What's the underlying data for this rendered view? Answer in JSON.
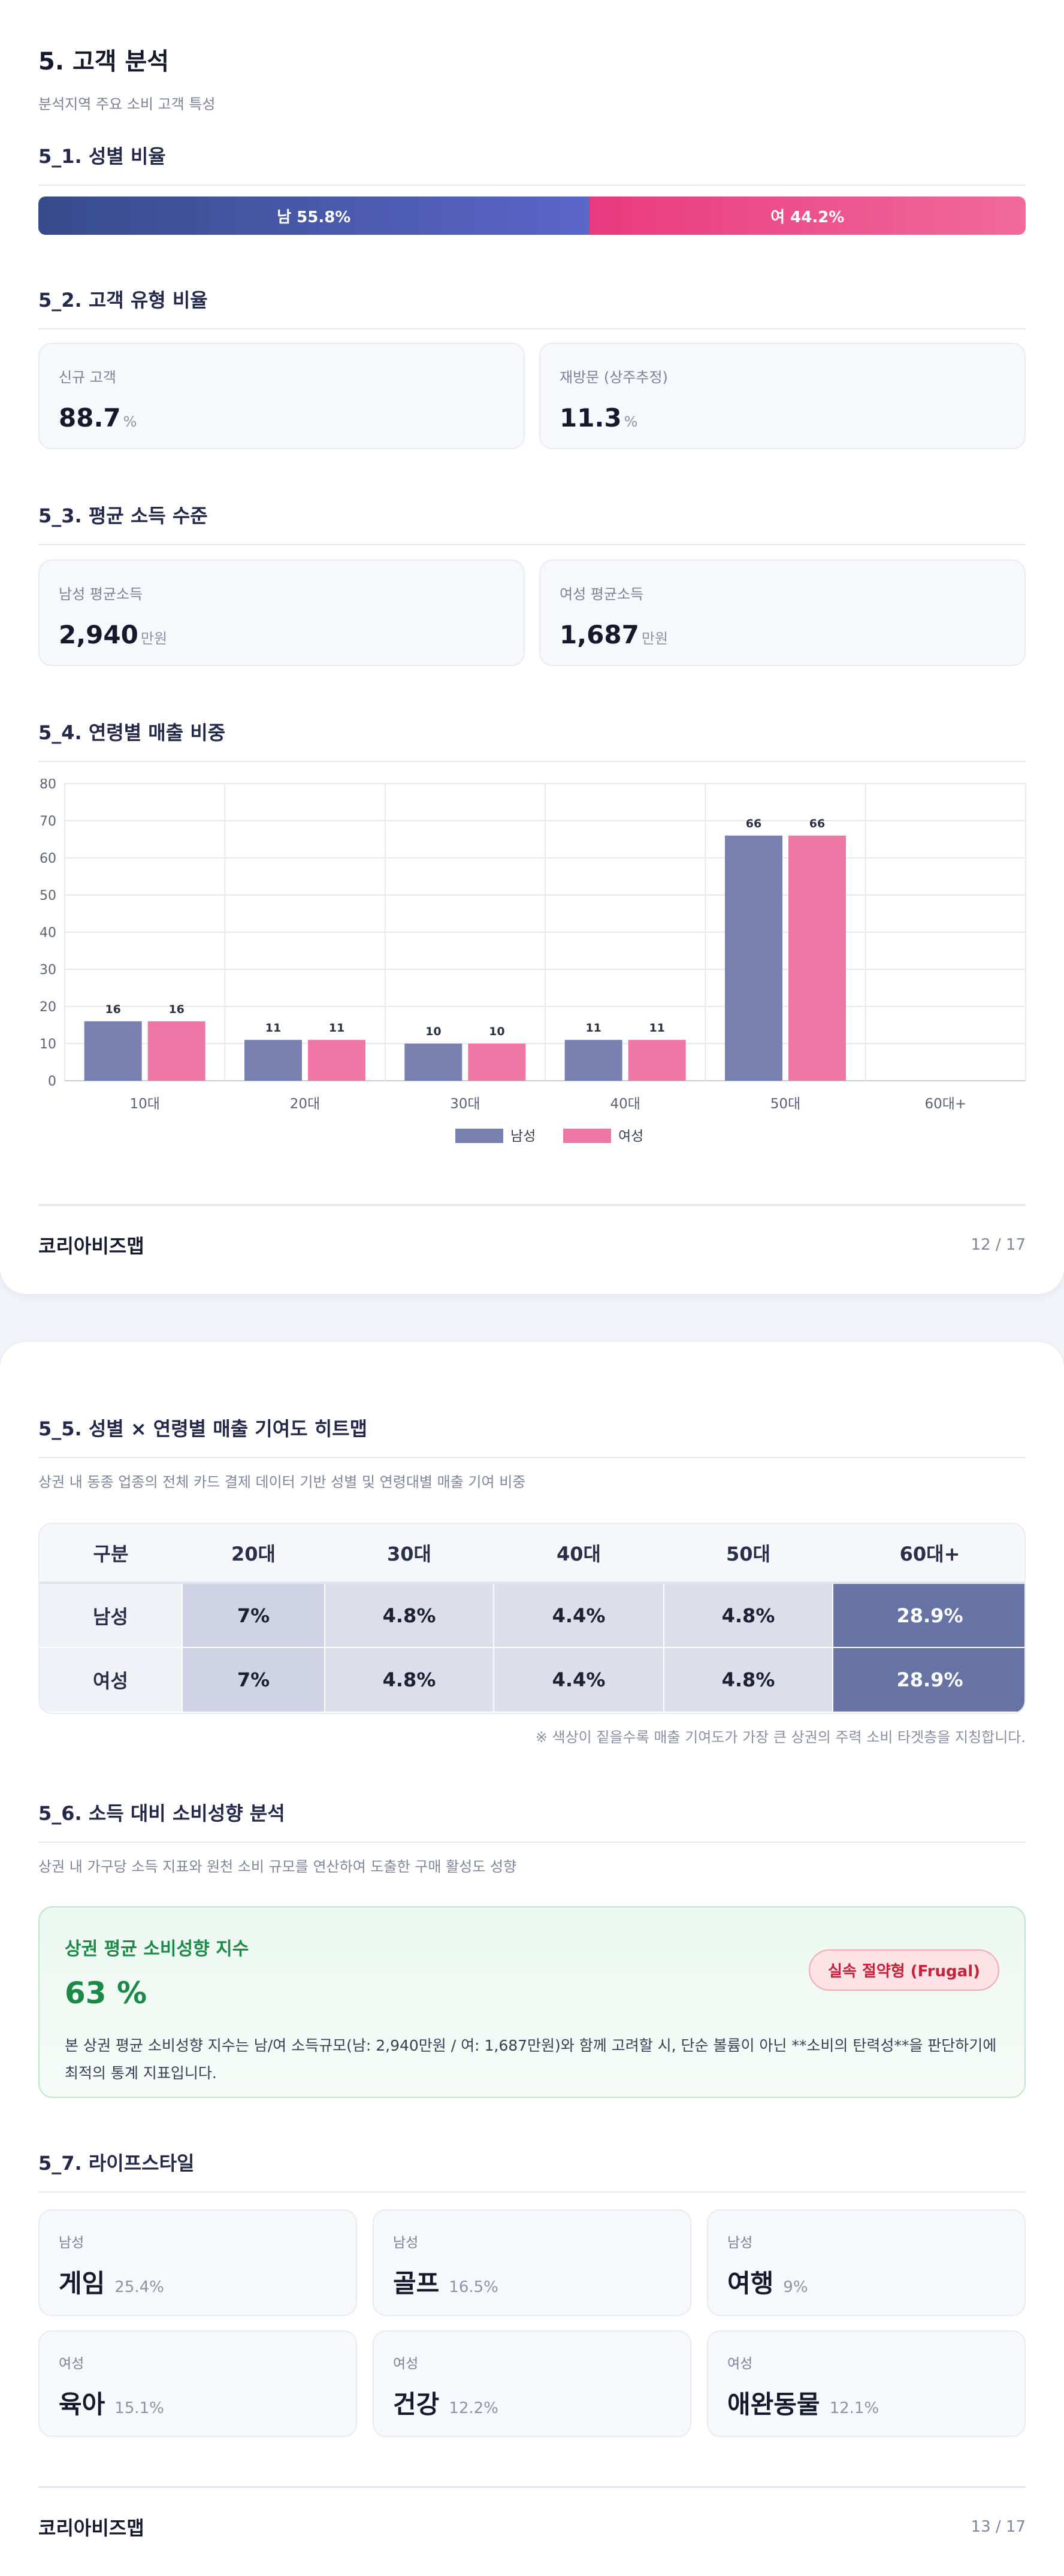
{
  "page1": {
    "title": "5. 고객 분석",
    "subtitle": "분석지역 주요 소비 고객 특성",
    "s1": {
      "title": "5_1. 성별 비율",
      "male_label": "남 55.8%",
      "female_label": "여 44.2%",
      "male_ratio": 55.8,
      "female_ratio": 44.2,
      "male_color": "#4a5aac",
      "female_color": "#ec4a89"
    },
    "s2": {
      "title": "5_2. 고객 유형 비율",
      "cards": [
        {
          "label": "신규 고객",
          "value": "88.7",
          "unit": "%"
        },
        {
          "label": "재방문 (상주추정)",
          "value": "11.3",
          "unit": "%"
        }
      ]
    },
    "s3": {
      "title": "5_3. 평균 소득 수준",
      "cards": [
        {
          "label": "남성 평균소득",
          "value": "2,940",
          "unit": "만원"
        },
        {
          "label": "여성 평균소득",
          "value": "1,687",
          "unit": "만원"
        }
      ]
    },
    "s4": {
      "title": "5_4. 연령별 매출 비중"
    },
    "footer": {
      "brand": "코리아비즈맵",
      "page": "12 / 17"
    }
  },
  "chart_data": {
    "type": "bar",
    "title": "",
    "xlabel": "",
    "ylabel": "",
    "categories": [
      "10대",
      "20대",
      "30대",
      "40대",
      "50대",
      "60대+"
    ],
    "series": [
      {
        "name": "남성",
        "values": [
          16,
          11,
          10,
          11,
          66,
          0
        ],
        "color": "#7880b0"
      },
      {
        "name": "여성",
        "values": [
          16,
          11,
          10,
          11,
          66,
          0
        ],
        "color": "#ee77a5"
      }
    ],
    "ylim": [
      0,
      80
    ],
    "yticks": [
      0,
      10,
      20,
      30,
      40,
      50,
      60,
      70,
      80
    ],
    "grid": true,
    "legend": "bottom-center",
    "data_labels": true
  },
  "page2": {
    "s5": {
      "title": "5_5. 성별 × 연령별 매출 기여도 히트맵",
      "desc": "상권 내 동종 업종의 전체 카드 결제 데이터 기반 성별 및 연령대별 매출 기여 비중",
      "headers": [
        "구분",
        "20대",
        "30대",
        "40대",
        "50대",
        "60대+"
      ],
      "rows": [
        {
          "label": "남성",
          "cells": [
            "7%",
            "4.8%",
            "4.4%",
            "4.8%",
            "28.9%"
          ]
        },
        {
          "label": "여성",
          "cells": [
            "7%",
            "4.8%",
            "4.4%",
            "4.8%",
            "28.9%"
          ]
        }
      ],
      "cell_colors": [
        "#d0d3e6",
        "#dcdeea",
        "#dcdeea",
        "#dcdeea",
        "#6873a5"
      ],
      "note": "※ 색상이 짙을수록 매출 기여도가 가장 큰 상권의 주력 소비 타겟층을 지칭합니다."
    },
    "s6": {
      "title": "5_6. 소득 대비 소비성향 분석",
      "desc": "상권 내 가구당 소득 지표와 원천 소비 규모를 연산하여 도출한 구매 활성도 성향",
      "card_label": "상권 평균 소비성향 지수",
      "card_value": "63 %",
      "badge": "실속 절약형 (Frugal)",
      "card_desc": "본 상권 평균 소비성향 지수는 남/여 소득규모(남: 2,940만원 / 여: 1,687만원)와 함께 고려할 시, 단순 볼륨이 아닌 **소비의 탄력성**을 판단하기에 최적의 통계 지표입니다."
    },
    "s7": {
      "title": "5_7. 라이프스타일",
      "items": [
        {
          "gender": "남성",
          "name": "게임",
          "pct": "25.4%"
        },
        {
          "gender": "남성",
          "name": "골프",
          "pct": "16.5%"
        },
        {
          "gender": "남성",
          "name": "여행",
          "pct": "9%"
        },
        {
          "gender": "여성",
          "name": "육아",
          "pct": "15.1%"
        },
        {
          "gender": "여성",
          "name": "건강",
          "pct": "12.2%"
        },
        {
          "gender": "여성",
          "name": "애완동물",
          "pct": "12.1%"
        }
      ]
    },
    "footer": {
      "brand": "코리아비즈맵",
      "page": "13 / 17"
    }
  }
}
